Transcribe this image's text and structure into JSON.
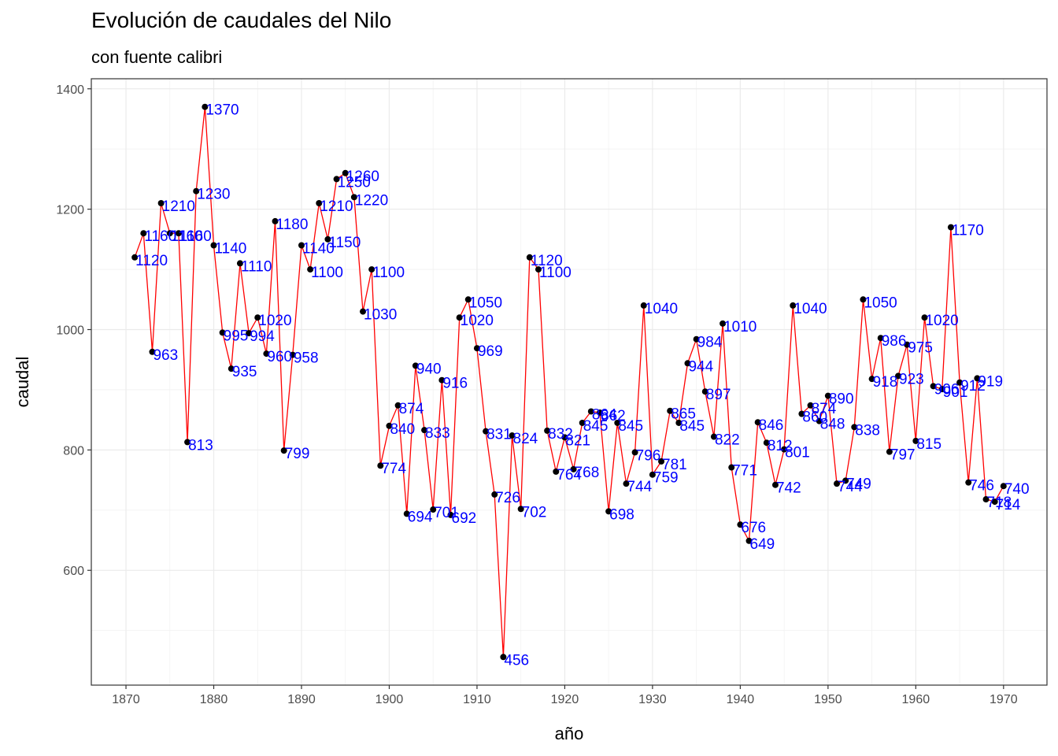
{
  "chart_data": {
    "type": "line",
    "title": "Evolución de caudales del Nilo",
    "subtitle": "con fuente calibri",
    "xlabel": "año",
    "ylabel": "caudal",
    "xlim": [
      1866.05,
      1974.95
    ],
    "ylim": [
      409.3,
      1416.7
    ],
    "x_ticks": [
      1870,
      1880,
      1890,
      1900,
      1910,
      1920,
      1930,
      1940,
      1950,
      1960,
      1970
    ],
    "y_ticks": [
      600,
      800,
      1000,
      1200,
      1400
    ],
    "grid": true,
    "line_color": "#ff0000",
    "point_color": "#000000",
    "label_color": "#0000ff",
    "series": [
      {
        "x": [
          1871,
          1872,
          1873,
          1874,
          1875,
          1876,
          1877,
          1878,
          1879,
          1880,
          1881,
          1882,
          1883,
          1884,
          1885,
          1886,
          1887,
          1888,
          1889,
          1890,
          1891,
          1892,
          1893,
          1894,
          1895,
          1896,
          1897,
          1898,
          1899,
          1900,
          1901,
          1902,
          1903,
          1904,
          1905,
          1906,
          1907,
          1908,
          1909,
          1910,
          1911,
          1912,
          1913,
          1914,
          1915,
          1916,
          1917,
          1918,
          1919,
          1920,
          1921,
          1922,
          1923,
          1924,
          1925,
          1926,
          1927,
          1928,
          1929,
          1930,
          1931,
          1932,
          1933,
          1934,
          1935,
          1936,
          1937,
          1938,
          1939,
          1940,
          1941,
          1942,
          1943,
          1944,
          1945,
          1946,
          1947,
          1948,
          1949,
          1950,
          1951,
          1952,
          1953,
          1954,
          1955,
          1956,
          1957,
          1958,
          1959,
          1960,
          1961,
          1962,
          1963,
          1964,
          1965,
          1966,
          1967,
          1968,
          1969,
          1970
        ],
        "values": [
          1120,
          1160,
          963,
          1210,
          1160,
          1160,
          813,
          1230,
          1370,
          1140,
          995,
          935,
          1110,
          994,
          1020,
          960,
          1180,
          799,
          958,
          1140,
          1100,
          1210,
          1150,
          1250,
          1260,
          1220,
          1030,
          1100,
          774,
          840,
          874,
          694,
          940,
          833,
          701,
          916,
          692,
          1020,
          1050,
          969,
          831,
          726,
          456,
          824,
          702,
          1120,
          1100,
          832,
          764,
          821,
          768,
          845,
          864,
          862,
          698,
          845,
          744,
          796,
          1040,
          759,
          781,
          865,
          845,
          944,
          984,
          897,
          822,
          1010,
          771,
          676,
          649,
          846,
          812,
          742,
          801,
          1040,
          860,
          874,
          848,
          890,
          744,
          749,
          838,
          1050,
          918,
          986,
          797,
          923,
          975,
          815,
          1020,
          906,
          901,
          1170,
          912,
          746,
          919,
          718,
          714,
          740
        ]
      }
    ]
  }
}
